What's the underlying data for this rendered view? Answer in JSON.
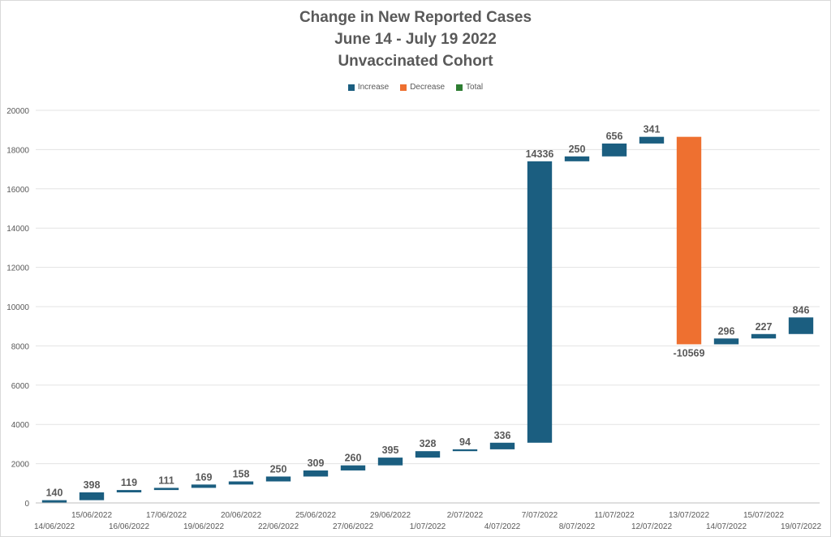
{
  "chart_data": {
    "type": "waterfall",
    "title": "Change in New Reported Cases",
    "subtitle_1": "June 14 - July 19 2022",
    "subtitle_2": "Unvaccinated  Cohort",
    "legend": [
      {
        "key": "increase",
        "label": "Increase",
        "color": "#1b5e80"
      },
      {
        "key": "decrease",
        "label": "Decrease",
        "color": "#ee7030"
      },
      {
        "key": "total",
        "label": "Total",
        "color": "#2e7d32"
      }
    ],
    "legend_position": "top-center",
    "ylim": [
      0,
      20000
    ],
    "y_ticks": [
      "0",
      "2000",
      "4000",
      "6000",
      "8000",
      "10000",
      "12000",
      "14000",
      "16000",
      "18000",
      "20000"
    ],
    "grid": true,
    "categories": [
      "14/06/2022",
      "15/06/2022",
      "16/06/2022",
      "17/06/2022",
      "19/06/2022",
      "20/06/2022",
      "22/06/2022",
      "25/06/2022",
      "27/06/2022",
      "29/06/2022",
      "1/07/2022",
      "2/07/2022",
      "4/07/2022",
      "7/07/2022",
      "8/07/2022",
      "11/07/2022",
      "12/07/2022",
      "13/07/2022",
      "14/07/2022",
      "15/07/2022",
      "19/07/2022"
    ],
    "values": [
      140,
      398,
      119,
      111,
      169,
      158,
      250,
      309,
      260,
      395,
      328,
      94,
      336,
      14336,
      250,
      656,
      341,
      -10569,
      296,
      227,
      846
    ],
    "value_labels": [
      "140",
      "398",
      "119",
      "111",
      "169",
      "158",
      "250",
      "309",
      "260",
      "395",
      "328",
      "94",
      "336",
      "14336",
      "250",
      "656",
      "341",
      "-10569",
      "296",
      "227",
      "846"
    ]
  }
}
